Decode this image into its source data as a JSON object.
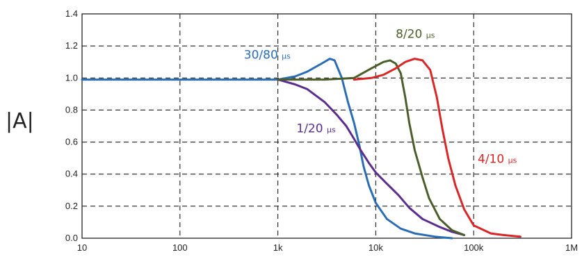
{
  "chart_data": {
    "type": "line",
    "title": "",
    "xlabel": "",
    "ylabel": "|A|",
    "x_scale": "log",
    "xlim": [
      10,
      1000000
    ],
    "ylim": [
      0,
      1.4
    ],
    "grid": true,
    "x_ticks": [
      {
        "value": 10,
        "label": "10"
      },
      {
        "value": 100,
        "label": "100"
      },
      {
        "value": 1000,
        "label": "1k"
      },
      {
        "value": 10000,
        "label": "10k"
      },
      {
        "value": 100000,
        "label": "100k"
      },
      {
        "value": 1000000,
        "label": "1M"
      }
    ],
    "y_ticks": [
      {
        "value": 0,
        "label": "0.0"
      },
      {
        "value": 0.2,
        "label": "0.2"
      },
      {
        "value": 0.4,
        "label": "0.4"
      },
      {
        "value": 0.6,
        "label": "0.6"
      },
      {
        "value": 0.8,
        "label": "0.8"
      },
      {
        "value": 1.0,
        "label": "1.0"
      },
      {
        "value": 1.2,
        "label": "1.2"
      },
      {
        "value": 1.4,
        "label": "1.4"
      }
    ],
    "series": [
      {
        "name": "30/80",
        "unit": "μs",
        "color": "#2a6db5",
        "x": [
          10,
          100,
          1000,
          1500,
          2000,
          2800,
          3400,
          3800,
          4500,
          5200,
          6000,
          6800,
          7500,
          8500,
          10000,
          13000,
          18000,
          25000,
          40000,
          60000
        ],
        "y": [
          0.99,
          0.99,
          0.99,
          1.01,
          1.04,
          1.09,
          1.12,
          1.11,
          1.0,
          0.85,
          0.72,
          0.58,
          0.45,
          0.33,
          0.22,
          0.12,
          0.06,
          0.03,
          0.01,
          0.0
        ]
      },
      {
        "name": "1/20",
        "unit": "μs",
        "color": "#5b2d8e",
        "x": [
          1000,
          1500,
          2000,
          3000,
          4000,
          5000,
          6000,
          7000,
          8500,
          10000,
          13000,
          17000,
          22000,
          30000,
          45000,
          60000,
          80000
        ],
        "y": [
          0.99,
          0.96,
          0.93,
          0.85,
          0.77,
          0.7,
          0.62,
          0.55,
          0.47,
          0.41,
          0.34,
          0.27,
          0.19,
          0.12,
          0.07,
          0.04,
          0.02
        ]
      },
      {
        "name": "8/20",
        "unit": "μs",
        "color": "#4b5e2a",
        "x": [
          1000,
          3000,
          6000,
          9000,
          12000,
          14000,
          16000,
          18000,
          20000,
          22000,
          25000,
          30000,
          35000,
          45000,
          60000,
          80000
        ],
        "y": [
          0.99,
          0.99,
          1.0,
          1.06,
          1.1,
          1.11,
          1.09,
          1.03,
          0.88,
          0.72,
          0.55,
          0.38,
          0.25,
          0.12,
          0.05,
          0.02
        ]
      },
      {
        "name": "4/10",
        "unit": "μs",
        "color": "#d92626",
        "x": [
          6000,
          9000,
          12000,
          16000,
          20000,
          25000,
          30000,
          36000,
          42000,
          48000,
          55000,
          65000,
          80000,
          100000,
          150000,
          200000,
          300000
        ],
        "y": [
          0.99,
          1.0,
          1.02,
          1.06,
          1.1,
          1.12,
          1.11,
          1.05,
          0.88,
          0.68,
          0.5,
          0.33,
          0.18,
          0.08,
          0.03,
          0.02,
          0.01
        ]
      }
    ],
    "annotations": [
      {
        "series": "30/80",
        "text": "30/80",
        "unit": "μs",
        "at_x": 450,
        "at_y": 1.12
      },
      {
        "series": "8/20",
        "text": "8/20",
        "unit": "μs",
        "at_x": 16000,
        "at_y": 1.25
      },
      {
        "series": "1/20",
        "text": "1/20",
        "unit": "μs",
        "at_x": 1550,
        "at_y": 0.66
      },
      {
        "series": "4/10",
        "text": "4/10",
        "unit": "μs",
        "at_x": 110000,
        "at_y": 0.47
      }
    ]
  }
}
